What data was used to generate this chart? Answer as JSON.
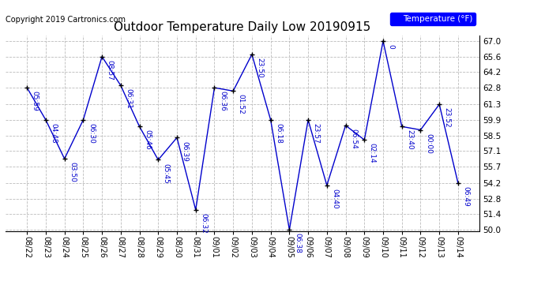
{
  "title": "Outdoor Temperature Daily Low 20190915",
  "copyright": "Copyright 2019 Cartronics.com",
  "legend_label": "Temperature (°F)",
  "dates": [
    "08/22",
    "08/23",
    "08/24",
    "08/25",
    "08/26",
    "08/27",
    "08/28",
    "08/29",
    "08/30",
    "08/31",
    "09/01",
    "09/02",
    "09/03",
    "09/04",
    "09/05",
    "09/06",
    "09/07",
    "09/08",
    "09/09",
    "09/10",
    "09/11",
    "09/12",
    "09/13",
    "09/14"
  ],
  "temps": [
    62.8,
    59.9,
    56.4,
    59.9,
    65.6,
    63.0,
    59.3,
    56.3,
    58.3,
    51.8,
    62.8,
    62.5,
    65.8,
    59.9,
    50.0,
    59.9,
    54.0,
    59.4,
    58.1,
    67.0,
    59.3,
    59.0,
    61.3,
    54.2
  ],
  "time_labels": [
    "05:59",
    "04:48",
    "03:50",
    "06:30",
    "08:57",
    "06:31",
    "05:46",
    "05:45",
    "06:39",
    "06:32",
    "06:36",
    "01:52",
    "23:50",
    "06:18",
    "06:38",
    "23:57",
    "04:40",
    "06:54",
    "02:14",
    "0",
    "23:40",
    "00:00",
    "23:52",
    "06:49"
  ],
  "ylim": [
    50.0,
    67.0
  ],
  "yticks": [
    50.0,
    51.4,
    52.8,
    54.2,
    55.7,
    57.1,
    58.5,
    59.9,
    61.3,
    62.8,
    64.2,
    65.6,
    67.0
  ],
  "line_color": "#0000cc",
  "marker_color": "#000000",
  "bg_color": "#ffffff",
  "grid_color": "#bbbbbb",
  "title_fontsize": 11,
  "label_fontsize": 6.5,
  "copyright_fontsize": 7,
  "legend_box_color": "#0000ff",
  "legend_text_color": "#ffffff"
}
